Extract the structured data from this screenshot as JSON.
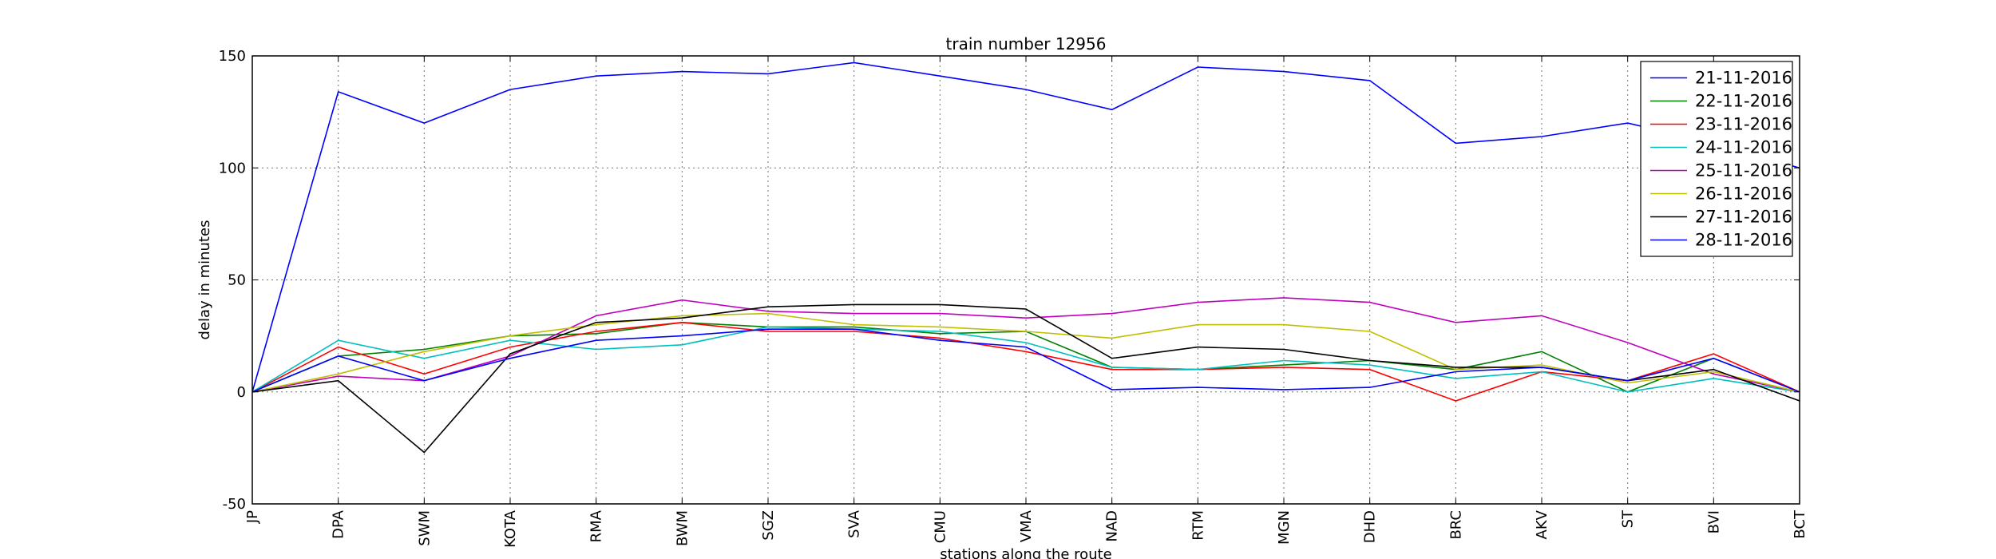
{
  "chart_data": {
    "type": "line",
    "title": "train number 12956",
    "xlabel": "stations along the route",
    "ylabel": "delay in minutes",
    "ylim": [
      -50,
      150
    ],
    "yticks": [
      -50,
      0,
      50,
      100,
      150
    ],
    "grid": true,
    "legend_position": "top-right",
    "categories": [
      "JP",
      "DPA",
      "SWM",
      "KOTA",
      "RMA",
      "BWM",
      "SGZ",
      "SVA",
      "CMU",
      "VMA",
      "NAD",
      "RTM",
      "MGN",
      "DHD",
      "BRC",
      "AKV",
      "ST",
      "BVI",
      "BCT"
    ],
    "series": [
      {
        "name": "21-11-2016",
        "color": "#0000ff",
        "values": [
          0,
          134,
          120,
          135,
          141,
          143,
          142,
          147,
          141,
          135,
          126,
          145,
          143,
          139,
          111,
          114,
          120,
          111,
          100
        ]
      },
      {
        "name": "22-11-2016",
        "color": "#008000",
        "values": [
          0,
          16,
          19,
          25,
          26,
          31,
          29,
          29,
          26,
          27,
          11,
          10,
          12,
          14,
          10,
          18,
          0,
          15,
          0
        ]
      },
      {
        "name": "23-11-2016",
        "color": "#ff0000",
        "values": [
          0,
          20,
          8,
          20,
          27,
          31,
          27,
          27,
          24,
          18,
          10,
          10,
          11,
          10,
          -4,
          9,
          5,
          17,
          0
        ]
      },
      {
        "name": "24-11-2016",
        "color": "#00bfbf",
        "values": [
          0,
          23,
          15,
          23,
          19,
          21,
          29,
          28,
          27,
          22,
          11,
          10,
          14,
          12,
          6,
          9,
          0,
          6,
          0
        ]
      },
      {
        "name": "25-11-2016",
        "color": "#bf00bf",
        "values": [
          0,
          7,
          5,
          16,
          34,
          41,
          36,
          35,
          35,
          33,
          35,
          40,
          42,
          40,
          31,
          34,
          22,
          8,
          0
        ]
      },
      {
        "name": "26-11-2016",
        "color": "#bfbf00",
        "values": [
          0,
          8,
          18,
          25,
          30,
          34,
          35,
          30,
          29,
          27,
          24,
          30,
          30,
          27,
          10,
          12,
          4,
          9,
          0
        ]
      },
      {
        "name": "27-11-2016",
        "color": "#000000",
        "values": [
          0,
          5,
          -27,
          17,
          31,
          33,
          38,
          39,
          39,
          37,
          15,
          20,
          19,
          14,
          11,
          11,
          5,
          10,
          -4
        ]
      },
      {
        "name": "28-11-2016",
        "color": "#0000ff",
        "values": [
          0,
          16,
          5,
          15,
          23,
          25,
          28,
          28,
          23,
          20,
          1,
          2,
          1,
          2,
          9,
          11,
          5,
          15,
          0
        ]
      }
    ]
  }
}
